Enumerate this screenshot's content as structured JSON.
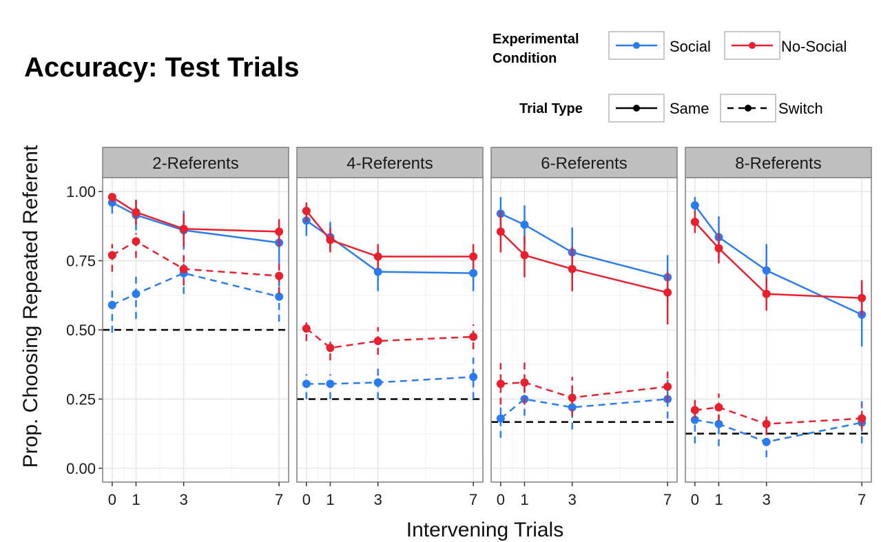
{
  "chart_data": {
    "type": "line",
    "title": "Accuracy: Test Trials",
    "xlabel": "Intervening Trials",
    "ylabel": "Prop. Choosing Repeated Referent",
    "x": [
      0,
      1,
      3,
      7
    ],
    "x_tick_labels": [
      "0",
      "1",
      "3",
      "7"
    ],
    "xlim": [
      -0.4,
      7.4
    ],
    "ylim": [
      -0.05,
      1.05
    ],
    "y_ticks": [
      0,
      0.25,
      0.5,
      0.75,
      1.0
    ],
    "y_tick_labels": [
      "0.00",
      "0.25",
      "0.50",
      "0.75",
      "1.00"
    ],
    "grid": true,
    "legend": {
      "condition": {
        "title_line1": "Experimental",
        "title_line2": "Condition",
        "entries": [
          {
            "label": "Social",
            "color": "#2b7bf0"
          },
          {
            "label": "No-Social",
            "color": "#e8202e"
          }
        ]
      },
      "trial_type": {
        "title": "Trial Type",
        "entries": [
          {
            "label": "Same",
            "linestyle": "solid"
          },
          {
            "label": "Switch",
            "linestyle": "dashed"
          }
        ]
      }
    },
    "panels": [
      {
        "label": "2-Referents",
        "chance": 0.5,
        "series": [
          {
            "condition": "Social",
            "trial_type": "Same",
            "values": [
              0.96,
              0.915,
              0.86,
              0.815
            ],
            "ci_low": [
              0.92,
              0.86,
              0.79,
              0.74
            ],
            "ci_high": [
              0.99,
              0.97,
              0.93,
              0.89
            ]
          },
          {
            "condition": "No-Social",
            "trial_type": "Same",
            "values": [
              0.98,
              0.925,
              0.865,
              0.855
            ],
            "ci_low": [
              0.96,
              0.88,
              0.8,
              0.8
            ],
            "ci_high": [
              0.99,
              0.97,
              0.92,
              0.9
            ]
          },
          {
            "condition": "Social",
            "trial_type": "Switch",
            "values": [
              0.59,
              0.63,
              0.705,
              0.62
            ],
            "ci_low": [
              0.49,
              0.54,
              0.63,
              0.53
            ],
            "ci_high": [
              0.66,
              0.71,
              0.77,
              0.69
            ]
          },
          {
            "condition": "No-Social",
            "trial_type": "Switch",
            "values": [
              0.77,
              0.82,
              0.72,
              0.695
            ],
            "ci_low": [
              0.71,
              0.76,
              0.66,
              0.63
            ],
            "ci_high": [
              0.81,
              0.85,
              0.78,
              0.75
            ]
          }
        ]
      },
      {
        "label": "4-Referents",
        "chance": 0.25,
        "series": [
          {
            "condition": "Social",
            "trial_type": "Same",
            "values": [
              0.895,
              0.835,
              0.71,
              0.705
            ],
            "ci_low": [
              0.84,
              0.79,
              0.64,
              0.64
            ],
            "ci_high": [
              0.94,
              0.89,
              0.77,
              0.77
            ]
          },
          {
            "condition": "No-Social",
            "trial_type": "Same",
            "values": [
              0.93,
              0.825,
              0.765,
              0.765
            ],
            "ci_low": [
              0.89,
              0.78,
              0.72,
              0.72
            ],
            "ci_high": [
              0.96,
              0.87,
              0.81,
              0.81
            ]
          },
          {
            "condition": "Social",
            "trial_type": "Switch",
            "values": [
              0.305,
              0.305,
              0.31,
              0.33
            ],
            "ci_low": [
              0.25,
              0.25,
              0.25,
              0.25
            ],
            "ci_high": [
              0.34,
              0.34,
              0.37,
              0.4
            ]
          },
          {
            "condition": "No-Social",
            "trial_type": "Switch",
            "values": [
              0.505,
              0.435,
              0.46,
              0.475
            ],
            "ci_low": [
              0.46,
              0.39,
              0.41,
              0.43
            ],
            "ci_high": [
              0.54,
              0.47,
              0.51,
              0.52
            ]
          }
        ]
      },
      {
        "label": "6-Referents",
        "chance": 0.167,
        "series": [
          {
            "condition": "Social",
            "trial_type": "Same",
            "values": [
              0.92,
              0.88,
              0.78,
              0.69
            ],
            "ci_low": [
              0.86,
              0.81,
              0.68,
              0.6
            ],
            "ci_high": [
              0.98,
              0.95,
              0.87,
              0.77
            ]
          },
          {
            "condition": "No-Social",
            "trial_type": "Same",
            "values": [
              0.855,
              0.77,
              0.72,
              0.635
            ],
            "ci_low": [
              0.78,
              0.69,
              0.64,
              0.52
            ],
            "ci_high": [
              0.93,
              0.84,
              0.8,
              0.71
            ]
          },
          {
            "condition": "Social",
            "trial_type": "Switch",
            "values": [
              0.18,
              0.25,
              0.22,
              0.25
            ],
            "ci_low": [
              0.11,
              0.19,
              0.14,
              0.18
            ],
            "ci_high": [
              0.24,
              0.31,
              0.28,
              0.32
            ]
          },
          {
            "condition": "No-Social",
            "trial_type": "Switch",
            "values": [
              0.305,
              0.31,
              0.255,
              0.295
            ],
            "ci_low": [
              0.23,
              0.23,
              0.19,
              0.24
            ],
            "ci_high": [
              0.38,
              0.39,
              0.33,
              0.36
            ]
          }
        ]
      },
      {
        "label": "8-Referents",
        "chance": 0.125,
        "series": [
          {
            "condition": "Social",
            "trial_type": "Same",
            "values": [
              0.95,
              0.835,
              0.715,
              0.555
            ],
            "ci_low": [
              0.92,
              0.76,
              0.62,
              0.44
            ],
            "ci_high": [
              0.98,
              0.91,
              0.81,
              0.67
            ]
          },
          {
            "condition": "No-Social",
            "trial_type": "Same",
            "values": [
              0.89,
              0.795,
              0.63,
              0.615
            ],
            "ci_low": [
              0.85,
              0.74,
              0.57,
              0.55
            ],
            "ci_high": [
              0.93,
              0.85,
              0.69,
              0.68
            ]
          },
          {
            "condition": "Social",
            "trial_type": "Switch",
            "values": [
              0.175,
              0.16,
              0.095,
              0.165
            ],
            "ci_low": [
              0.09,
              0.08,
              0.04,
              0.09
            ],
            "ci_high": [
              0.25,
              0.22,
              0.16,
              0.25
            ]
          },
          {
            "condition": "No-Social",
            "trial_type": "Switch",
            "values": [
              0.21,
              0.22,
              0.16,
              0.18
            ],
            "ci_low": [
              0.18,
              0.17,
              0.12,
              0.14
            ],
            "ci_high": [
              0.25,
              0.27,
              0.2,
              0.23
            ]
          }
        ]
      }
    ]
  }
}
